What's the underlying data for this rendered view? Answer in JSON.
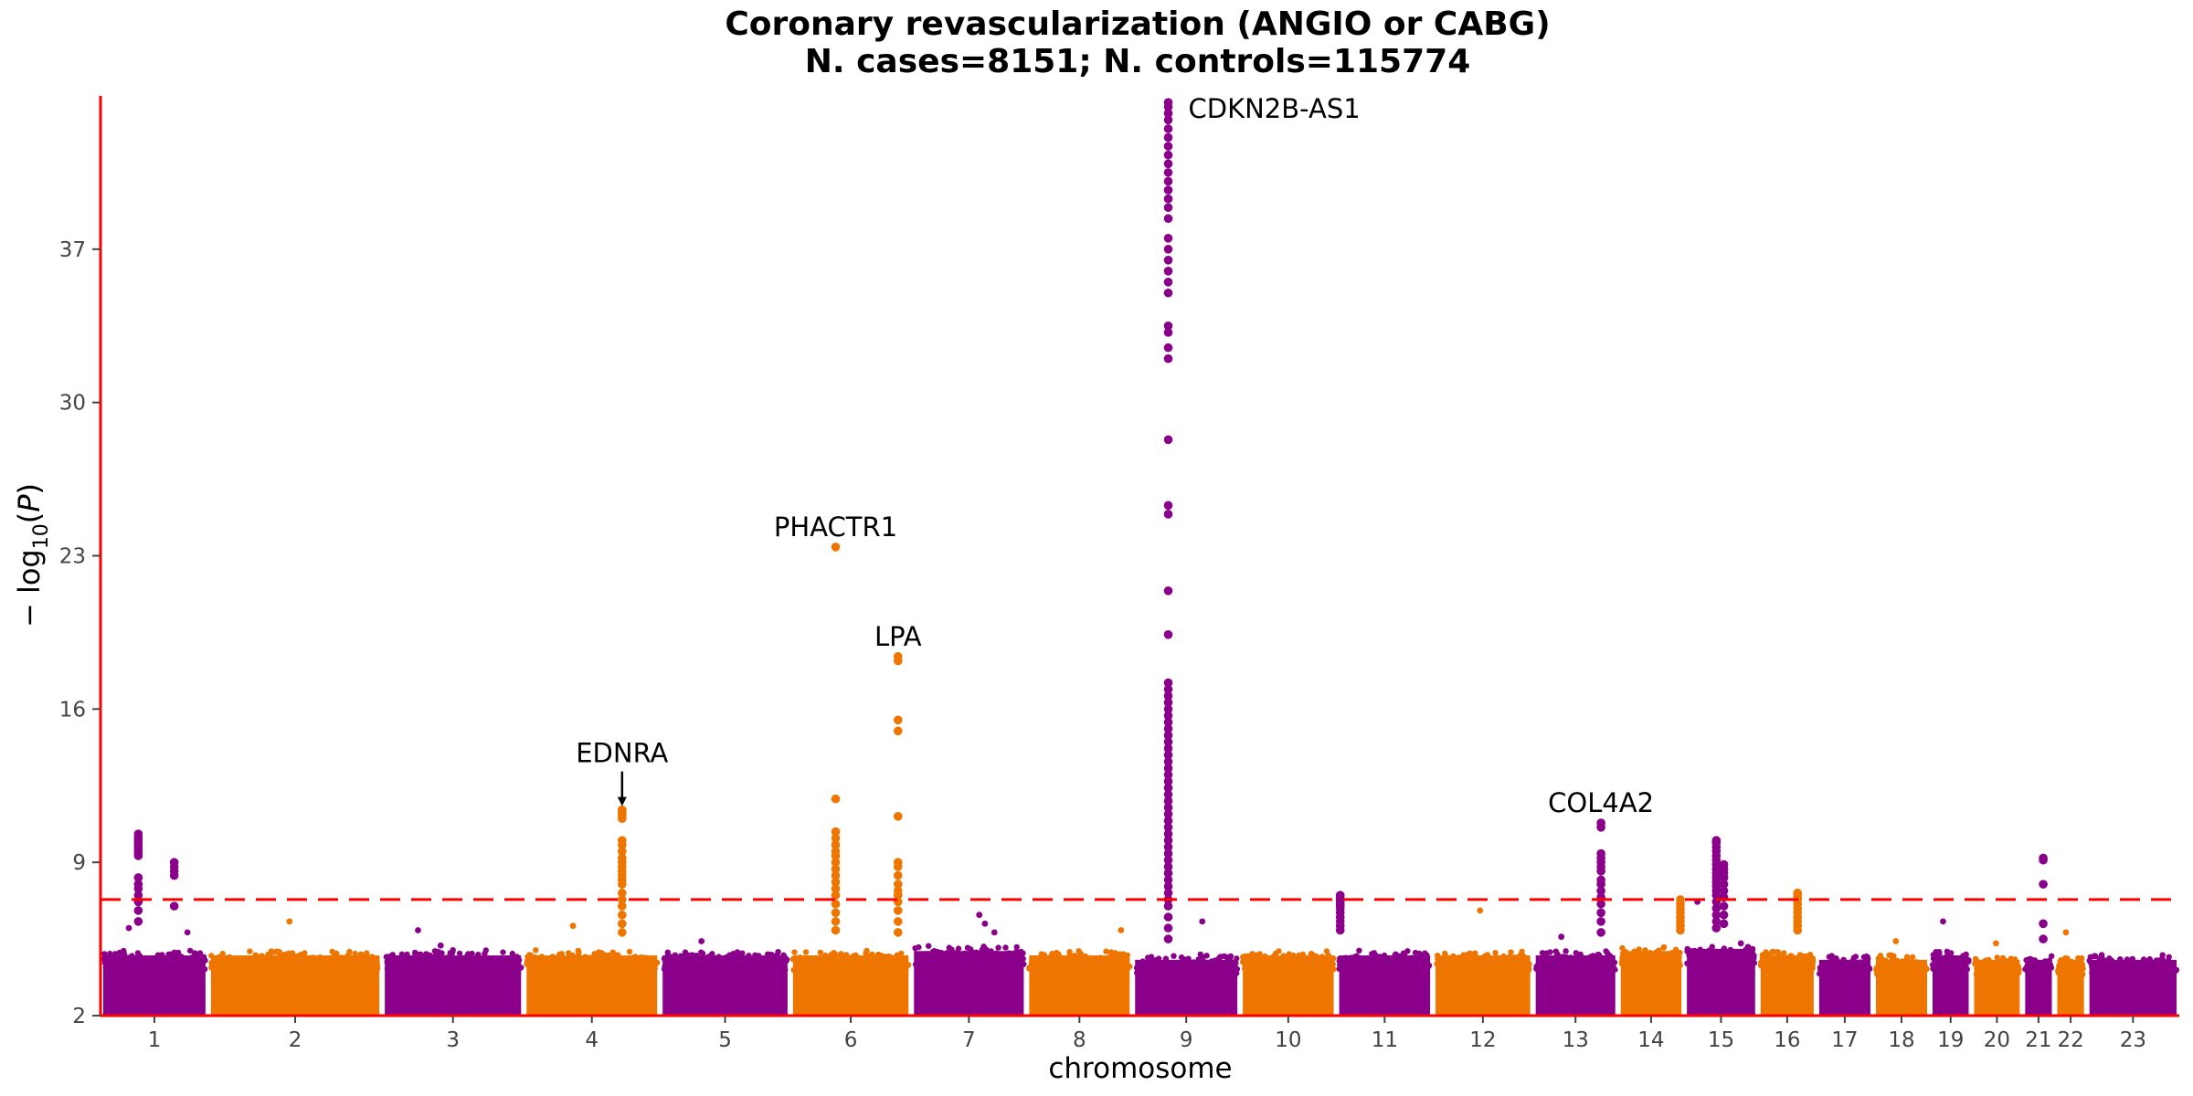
{
  "chart_data": {
    "type": "scatter",
    "title": "Coronary revascularization (ANGIO or CABG)",
    "subtitle": "N. cases=8151; N. controls=115774",
    "xlabel": "chromosome",
    "ylabel": "−log10(P)",
    "ylim": [
      2,
      44
    ],
    "yticks": [
      2,
      9,
      16,
      23,
      30,
      37
    ],
    "grid": false,
    "significance_line": 7.3,
    "colors": {
      "odd_chromosomes": "#8B008B",
      "even_chromosomes": "#EE7600",
      "axis": "#FF0000",
      "threshold_line": "#FF0000"
    },
    "chromosomes": [
      {
        "label": "1",
        "color": "#8B008B",
        "lo": 0.0,
        "hi": 5.7,
        "bandHi": 5.0
      },
      {
        "label": "2",
        "color": "#EE7600",
        "lo": 5.7,
        "hi": 14.9,
        "bandHi": 5.0
      },
      {
        "label": "3",
        "color": "#8B008B",
        "lo": 14.9,
        "hi": 22.4,
        "bandHi": 5.0
      },
      {
        "label": "4",
        "color": "#EE7600",
        "lo": 22.4,
        "hi": 29.6,
        "bandHi": 5.0
      },
      {
        "label": "5",
        "color": "#8B008B",
        "lo": 29.6,
        "hi": 36.5,
        "bandHi": 5.0
      },
      {
        "label": "6",
        "color": "#EE7600",
        "lo": 36.5,
        "hi": 42.9,
        "bandHi": 5.0
      },
      {
        "label": "7",
        "color": "#8B008B",
        "lo": 42.9,
        "hi": 49.0,
        "bandHi": 5.2
      },
      {
        "label": "8",
        "color": "#EE7600",
        "lo": 49.0,
        "hi": 54.6,
        "bandHi": 5.0
      },
      {
        "label": "9",
        "color": "#8B008B",
        "lo": 54.6,
        "hi": 60.3,
        "bandHi": 4.8
      },
      {
        "label": "10",
        "color": "#EE7600",
        "lo": 60.3,
        "hi": 65.4,
        "bandHi": 5.0
      },
      {
        "label": "11",
        "color": "#8B008B",
        "lo": 65.4,
        "hi": 70.5,
        "bandHi": 5.0
      },
      {
        "label": "12",
        "color": "#EE7600",
        "lo": 70.5,
        "hi": 75.8,
        "bandHi": 5.0
      },
      {
        "label": "13",
        "color": "#8B008B",
        "lo": 75.8,
        "hi": 80.3,
        "bandHi": 5.0
      },
      {
        "label": "14",
        "color": "#EE7600",
        "lo": 80.3,
        "hi": 83.8,
        "bandHi": 5.2
      },
      {
        "label": "15",
        "color": "#8B008B",
        "lo": 83.8,
        "hi": 87.7,
        "bandHi": 5.3
      },
      {
        "label": "16",
        "color": "#EE7600",
        "lo": 87.7,
        "hi": 90.8,
        "bandHi": 5.0
      },
      {
        "label": "17",
        "color": "#8B008B",
        "lo": 90.8,
        "hi": 93.8,
        "bandHi": 4.8
      },
      {
        "label": "18",
        "color": "#EE7600",
        "lo": 93.8,
        "hi": 96.8,
        "bandHi": 4.8
      },
      {
        "label": "19",
        "color": "#8B008B",
        "lo": 96.8,
        "hi": 99.0,
        "bandHi": 5.0
      },
      {
        "label": "20",
        "color": "#EE7600",
        "lo": 99.0,
        "hi": 101.7,
        "bandHi": 4.8
      },
      {
        "label": "21",
        "color": "#8B008B",
        "lo": 101.7,
        "hi": 103.4,
        "bandHi": 4.8
      },
      {
        "label": "22",
        "color": "#EE7600",
        "lo": 103.4,
        "hi": 105.1,
        "bandHi": 4.8
      },
      {
        "label": "23",
        "color": "#8B008B",
        "lo": 105.1,
        "hi": 110.0,
        "bandHi": 4.8
      }
    ],
    "peaks": [
      {
        "chrom": "1",
        "x": 2.0,
        "y": [
          10.3,
          10.2,
          10.1,
          10.0,
          9.9,
          9.8,
          9.7,
          9.6,
          9.5,
          9.4,
          9.3,
          8.3,
          8.0,
          7.8,
          7.5,
          7.2,
          6.8,
          6.3
        ]
      },
      {
        "chrom": "1",
        "x": 3.9,
        "y": [
          9.0,
          8.8,
          8.6,
          8.4,
          7.0
        ]
      },
      {
        "chrom": "4",
        "x": 27.6,
        "y": [
          11.4,
          11.3,
          11.2,
          11.1,
          11.0,
          10.0,
          9.8,
          9.5,
          9.2,
          9.0,
          8.8,
          8.6,
          8.4,
          8.2,
          8.0,
          7.6,
          7.3,
          7.0,
          6.6,
          6.2,
          5.8
        ]
      },
      {
        "chrom": "6",
        "x": 38.9,
        "y": [
          23.4,
          11.9,
          10.4,
          10.1,
          9.8,
          9.5,
          9.3,
          9.0,
          8.7,
          8.4,
          8.1,
          7.8,
          7.5,
          7.1,
          6.7,
          6.3,
          5.9
        ]
      },
      {
        "chrom": "6",
        "x": 42.2,
        "y": [
          18.4,
          18.2,
          15.5,
          15.0,
          11.1,
          9.0,
          8.8,
          8.4,
          8.0,
          7.7,
          7.5,
          7.2,
          6.8,
          6.3,
          5.8
        ]
      },
      {
        "chrom": "9",
        "x": 56.5,
        "y": [
          43.7,
          43.5,
          43.2,
          42.9,
          42.5,
          42.1,
          41.7,
          41.3,
          40.9,
          40.5,
          40.1,
          39.7,
          39.3,
          38.9,
          38.4,
          37.5,
          37.0,
          36.5,
          36.0,
          35.5,
          35.0,
          33.5,
          33.2,
          32.5,
          32.0,
          28.3,
          25.3,
          24.9,
          21.4,
          19.4,
          17.2,
          16.9,
          16.6,
          16.3,
          16.0,
          15.7,
          15.4,
          15.1,
          14.8,
          14.5,
          14.2,
          13.9,
          13.6,
          13.3,
          13.0,
          12.7,
          12.4,
          12.1,
          11.8,
          11.5,
          11.2,
          10.9,
          10.6,
          10.3,
          10.0,
          9.7,
          9.4,
          9.1,
          8.8,
          8.5,
          8.2,
          7.9,
          7.6,
          7.3,
          7.0,
          6.5,
          6.0,
          5.5
        ]
      },
      {
        "chrom": "11",
        "x": 65.6,
        "y": [
          7.5,
          7.4,
          7.3,
          7.2,
          7.1,
          7.0,
          6.9,
          6.7,
          6.5,
          6.3,
          6.1,
          5.9
        ]
      },
      {
        "chrom": "13",
        "x": 79.4,
        "y": [
          10.8,
          10.6,
          9.4,
          9.2,
          9.0,
          8.8,
          8.6,
          8.2,
          8.0,
          7.7,
          7.4,
          7.1,
          6.7,
          6.3,
          5.8
        ]
      },
      {
        "chrom": "14",
        "x": 83.6,
        "y": [
          7.3,
          7.1,
          6.9,
          6.7,
          6.5,
          6.3,
          6.1,
          5.9
        ]
      },
      {
        "chrom": "15",
        "x": 85.5,
        "y": [
          10.0,
          9.9,
          9.7,
          9.5,
          9.3,
          9.1,
          8.9,
          8.7,
          8.5,
          8.3,
          8.1,
          7.9,
          7.7,
          7.5,
          7.2,
          6.9,
          6.6,
          6.3,
          6.0
        ]
      },
      {
        "chrom": "15",
        "x": 85.9,
        "y": [
          8.9,
          8.7,
          8.5,
          8.3,
          8.0,
          7.7,
          7.4,
          7.0,
          6.6,
          6.2
        ]
      },
      {
        "chrom": "16",
        "x": 89.8,
        "y": [
          7.6,
          7.5,
          7.4,
          7.3,
          7.1,
          6.9,
          6.7,
          6.5,
          6.3,
          6.1,
          5.9
        ]
      },
      {
        "chrom": "21",
        "x": 102.8,
        "y": [
          9.2,
          9.1,
          8.0,
          6.2,
          5.5
        ]
      }
    ],
    "extra_points": [
      {
        "x": 1.5,
        "y": 6.0
      },
      {
        "x": 4.6,
        "y": 5.8
      },
      {
        "x": 10.0,
        "y": 6.3
      },
      {
        "x": 16.8,
        "y": 5.9
      },
      {
        "x": 18.0,
        "y": 5.2
      },
      {
        "x": 25.0,
        "y": 6.1
      },
      {
        "x": 31.8,
        "y": 5.4
      },
      {
        "x": 46.5,
        "y": 6.6
      },
      {
        "x": 46.8,
        "y": 6.2
      },
      {
        "x": 47.3,
        "y": 5.8
      },
      {
        "x": 54.0,
        "y": 5.9
      },
      {
        "x": 58.3,
        "y": 6.3
      },
      {
        "x": 73.0,
        "y": 6.8
      },
      {
        "x": 77.3,
        "y": 5.6
      },
      {
        "x": 84.5,
        "y": 7.2
      },
      {
        "x": 86.8,
        "y": 5.3
      },
      {
        "x": 95.0,
        "y": 5.4
      },
      {
        "x": 97.5,
        "y": 6.3
      },
      {
        "x": 100.3,
        "y": 5.3
      },
      {
        "x": 104.0,
        "y": 5.8
      }
    ],
    "annotations": [
      {
        "text": "CDKN2B-AS1",
        "x": 56.5,
        "y": 43.5,
        "anchor": "left",
        "arrow": false
      },
      {
        "text": "PHACTR1",
        "x": 38.9,
        "y": 23.4,
        "anchor": "center",
        "arrow": false
      },
      {
        "text": "LPA",
        "x": 42.2,
        "y": 18.4,
        "anchor": "center",
        "arrow": false
      },
      {
        "text": "EDNRA",
        "x": 27.6,
        "y": 11.4,
        "anchor": "center",
        "arrow": true
      },
      {
        "text": "COL4A2",
        "x": 79.4,
        "y": 10.8,
        "anchor": "center",
        "arrow": false
      }
    ]
  }
}
